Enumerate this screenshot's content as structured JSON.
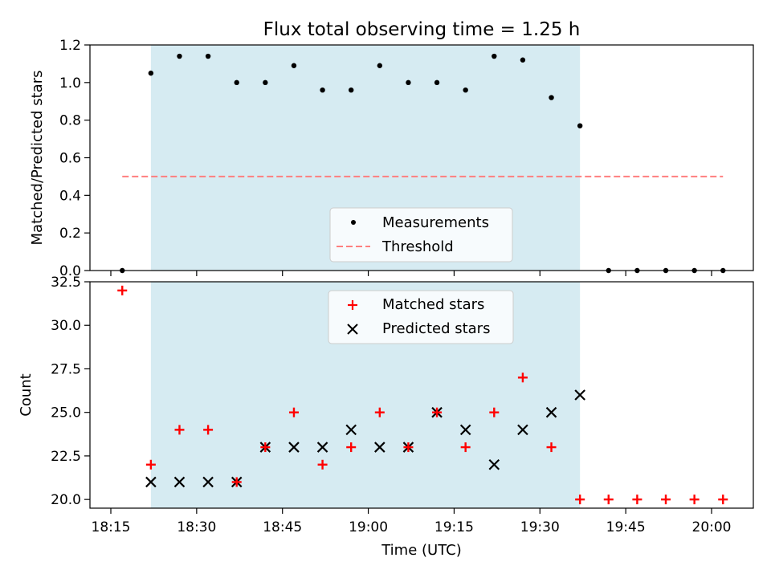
{
  "title": "Flux total observing time = 1.25 h",
  "colors": {
    "span": "#add8e6",
    "measurement": "#000000",
    "threshold": "#ff7f7f",
    "matched": "#ff0000",
    "predicted": "#000000"
  },
  "chart_data": [
    {
      "type": "scatter",
      "ylabel": "Matched/Predicted stars",
      "ylim": [
        0,
        1.2
      ],
      "yticks": [
        "0.0",
        "0.2",
        "0.4",
        "0.6",
        "0.8",
        "1.0",
        "1.2"
      ],
      "shaded_span": [
        "18:22",
        "19:37"
      ],
      "series": [
        {
          "name": "Measurements",
          "marker": "dot",
          "points": [
            [
              "18:17",
              0.0
            ],
            [
              "18:22",
              1.05
            ],
            [
              "18:27",
              1.14
            ],
            [
              "18:32",
              1.14
            ],
            [
              "18:37",
              1.0
            ],
            [
              "18:42",
              1.0
            ],
            [
              "18:47",
              1.09
            ],
            [
              "18:52",
              0.96
            ],
            [
              "18:57",
              0.96
            ],
            [
              "19:02",
              1.09
            ],
            [
              "19:07",
              1.0
            ],
            [
              "19:12",
              1.0
            ],
            [
              "19:17",
              0.96
            ],
            [
              "19:22",
              1.14
            ],
            [
              "19:27",
              1.12
            ],
            [
              "19:32",
              0.92
            ],
            [
              "19:37",
              0.77
            ],
            [
              "19:42",
              0.0
            ],
            [
              "19:47",
              0.0
            ],
            [
              "19:52",
              0.0
            ],
            [
              "19:57",
              0.0
            ],
            [
              "20:02",
              0.0
            ]
          ]
        },
        {
          "name": "Threshold",
          "marker": "dashed-line",
          "points": [
            [
              "18:17",
              0.5
            ],
            [
              "20:02",
              0.5
            ]
          ]
        }
      ],
      "legend": [
        "Measurements",
        "Threshold"
      ],
      "legend_position": "lower center"
    },
    {
      "type": "scatter",
      "ylabel": "Count",
      "xlabel": "Time (UTC)",
      "ylim": [
        19.5,
        32.5
      ],
      "yticks": [
        "20.0",
        "22.5",
        "25.0",
        "27.5",
        "30.0",
        "32.5"
      ],
      "xticks": [
        "18:15",
        "18:30",
        "18:45",
        "19:00",
        "19:15",
        "19:30",
        "19:45",
        "20:00"
      ],
      "shaded_span": [
        "18:22",
        "19:37"
      ],
      "series": [
        {
          "name": "Matched stars",
          "marker": "plus",
          "points": [
            [
              "18:17",
              32
            ],
            [
              "18:22",
              22
            ],
            [
              "18:27",
              24
            ],
            [
              "18:32",
              24
            ],
            [
              "18:37",
              21
            ],
            [
              "18:42",
              23
            ],
            [
              "18:47",
              25
            ],
            [
              "18:52",
              22
            ],
            [
              "18:57",
              23
            ],
            [
              "19:02",
              25
            ],
            [
              "19:07",
              23
            ],
            [
              "19:12",
              25
            ],
            [
              "19:17",
              23
            ],
            [
              "19:22",
              25
            ],
            [
              "19:27",
              27
            ],
            [
              "19:32",
              23
            ],
            [
              "19:37",
              20
            ],
            [
              "19:42",
              20
            ],
            [
              "19:47",
              20
            ],
            [
              "19:52",
              20
            ],
            [
              "19:57",
              20
            ],
            [
              "20:02",
              20
            ]
          ]
        },
        {
          "name": "Predicted stars",
          "marker": "x",
          "points": [
            [
              "18:22",
              21
            ],
            [
              "18:27",
              21
            ],
            [
              "18:32",
              21
            ],
            [
              "18:37",
              21
            ],
            [
              "18:42",
              23
            ],
            [
              "18:47",
              23
            ],
            [
              "18:52",
              23
            ],
            [
              "18:57",
              24
            ],
            [
              "19:02",
              23
            ],
            [
              "19:07",
              23
            ],
            [
              "19:12",
              25
            ],
            [
              "19:17",
              24
            ],
            [
              "19:22",
              22
            ],
            [
              "19:27",
              24
            ],
            [
              "19:32",
              25
            ],
            [
              "19:37",
              26
            ]
          ]
        }
      ],
      "legend": [
        "Matched stars",
        "Predicted stars"
      ],
      "legend_position": "upper center"
    }
  ]
}
